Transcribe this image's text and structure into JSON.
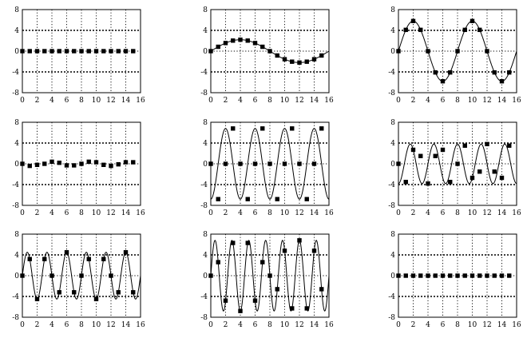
{
  "chart_data": [
    {
      "type": "line",
      "panel": 1,
      "xlim": [
        0,
        16
      ],
      "ylim": [
        -8,
        8
      ],
      "xticks": [
        "0",
        "2",
        "4",
        "6",
        "8",
        "10",
        "12",
        "14",
        "16"
      ],
      "yticks": [
        "8",
        "4",
        "0",
        "-4",
        "-8"
      ],
      "grid": true,
      "curve": {
        "amplitude": 0,
        "frequency_k": 0,
        "phase": 0
      },
      "x": [
        0,
        1,
        2,
        3,
        4,
        5,
        6,
        7,
        8,
        9,
        10,
        11,
        12,
        13,
        14,
        15
      ],
      "y": [
        0,
        0,
        0,
        0,
        0,
        0,
        0,
        0,
        0,
        0,
        0,
        0,
        0,
        0,
        0,
        0
      ]
    },
    {
      "type": "line",
      "panel": 2,
      "xlim": [
        0,
        16
      ],
      "ylim": [
        -8,
        8
      ],
      "xticks": [
        "0",
        "2",
        "4",
        "6",
        "8",
        "10",
        "12",
        "14",
        "16"
      ],
      "yticks": [
        "8",
        "4",
        "0",
        "-4",
        "-8"
      ],
      "grid": true,
      "curve": {
        "amplitude": 2.2,
        "frequency_k": 1,
        "phase": 0
      },
      "x": [
        0,
        1,
        2,
        3,
        4,
        5,
        6,
        7,
        8,
        9,
        10,
        11,
        12,
        13,
        14,
        15
      ],
      "y": [
        0,
        0.84,
        1.56,
        2.03,
        2.2,
        2.03,
        1.56,
        0.84,
        0,
        -0.84,
        -1.56,
        -2.03,
        -2.2,
        -2.03,
        -1.56,
        -0.84
      ]
    },
    {
      "type": "line",
      "panel": 3,
      "xlim": [
        0,
        16
      ],
      "ylim": [
        -8,
        8
      ],
      "xticks": [
        "0",
        "2",
        "4",
        "6",
        "8",
        "10",
        "12",
        "14",
        "16"
      ],
      "yticks": [
        "8",
        "4",
        "0",
        "-4",
        "-8"
      ],
      "grid": true,
      "curve": {
        "amplitude": 5.8,
        "frequency_k": 2,
        "phase": 0
      },
      "x": [
        0,
        1,
        2,
        3,
        4,
        5,
        6,
        7,
        8,
        9,
        10,
        11,
        12,
        13,
        14,
        15
      ],
      "y": [
        0,
        4.1,
        5.8,
        4.1,
        0,
        -4.1,
        -5.8,
        -4.1,
        0,
        4.1,
        5.8,
        4.1,
        0,
        -4.1,
        -5.8,
        -4.1
      ]
    },
    {
      "type": "line",
      "panel": 4,
      "xlim": [
        0,
        16
      ],
      "ylim": [
        -8,
        8
      ],
      "xticks": [
        "0",
        "2",
        "4",
        "6",
        "8",
        "10",
        "12",
        "14",
        "16"
      ],
      "yticks": [
        "8",
        "4",
        "0",
        "-4",
        "-8"
      ],
      "grid": true,
      "curve": null,
      "x": [
        0,
        1,
        2,
        3,
        4,
        5,
        6,
        7,
        8,
        9,
        10,
        11,
        12,
        13,
        14,
        15
      ],
      "y": [
        0,
        -0.4,
        -0.2,
        0,
        0.4,
        0.2,
        -0.3,
        -0.3,
        0,
        0.4,
        0.3,
        -0.2,
        -0.4,
        -0.1,
        0.3,
        0.3
      ]
    },
    {
      "type": "line",
      "panel": 5,
      "xlim": [
        0,
        16
      ],
      "ylim": [
        -8,
        8
      ],
      "xticks": [
        "0",
        "2",
        "4",
        "6",
        "8",
        "10",
        "12",
        "14",
        "16"
      ],
      "yticks": [
        "8",
        "4",
        "0",
        "-4",
        "-8"
      ],
      "grid": true,
      "curve": {
        "amplitude": 6.8,
        "frequency_k": 4,
        "phase": 4.712
      },
      "x": [
        0,
        1,
        2,
        3,
        4,
        5,
        6,
        7,
        8,
        9,
        10,
        11,
        12,
        13,
        14,
        15
      ],
      "y": [
        0,
        -6.8,
        0,
        6.8,
        0,
        -6.8,
        0,
        6.8,
        0,
        -6.8,
        0,
        6.8,
        0,
        -6.8,
        0,
        6.8
      ]
    },
    {
      "type": "line",
      "panel": 6,
      "xlim": [
        0,
        16
      ],
      "ylim": [
        -8,
        8
      ],
      "xticks": [
        "0",
        "2",
        "4",
        "6",
        "8",
        "10",
        "12",
        "14",
        "16"
      ],
      "yticks": [
        "8",
        "4",
        "0",
        "-4",
        "-8"
      ],
      "grid": true,
      "curve": {
        "amplitude": 3.8,
        "frequency_k": 5,
        "phase": 4.712
      },
      "x": [
        0,
        1,
        2,
        3,
        4,
        5,
        6,
        7,
        8,
        9,
        10,
        11,
        12,
        13,
        14,
        15
      ],
      "y": [
        0,
        -3.5,
        2.7,
        1.5,
        -3.8,
        1.5,
        2.7,
        -3.5,
        0,
        3.5,
        -2.7,
        -1.5,
        3.8,
        -1.5,
        -2.7,
        3.5
      ]
    },
    {
      "type": "line",
      "panel": 7,
      "xlim": [
        0,
        16
      ],
      "ylim": [
        -8,
        8
      ],
      "xticks": [
        "0",
        "2",
        "4",
        "6",
        "8",
        "10",
        "12",
        "14",
        "16"
      ],
      "yticks": [
        "8",
        "4",
        "0",
        "-4",
        "-8"
      ],
      "grid": true,
      "curve": {
        "amplitude": 4.5,
        "frequency_k": 6,
        "phase": 0
      },
      "x": [
        0,
        1,
        2,
        3,
        4,
        5,
        6,
        7,
        8,
        9,
        10,
        11,
        12,
        13,
        14,
        15
      ],
      "y": [
        0,
        3.2,
        -4.5,
        3.2,
        0,
        -3.2,
        4.5,
        -3.2,
        0,
        3.2,
        -4.5,
        3.2,
        0,
        -3.2,
        4.5,
        -3.2
      ]
    },
    {
      "type": "line",
      "panel": 8,
      "xlim": [
        0,
        16
      ],
      "ylim": [
        -8,
        8
      ],
      "xticks": [
        "0",
        "2",
        "4",
        "6",
        "8",
        "10",
        "12",
        "14",
        "16"
      ],
      "yticks": [
        "8",
        "4",
        "0",
        "-4",
        "-8"
      ],
      "grid": true,
      "curve": {
        "amplitude": 6.8,
        "frequency_k": 7,
        "phase": 0
      },
      "x": [
        0,
        1,
        2,
        3,
        4,
        5,
        6,
        7,
        8,
        9,
        10,
        11,
        12,
        13,
        14,
        15
      ],
      "y": [
        0,
        2.6,
        -4.8,
        6.3,
        -6.8,
        6.3,
        -4.8,
        2.6,
        0,
        -2.6,
        4.8,
        -6.3,
        6.8,
        -6.3,
        4.8,
        -2.6
      ]
    },
    {
      "type": "line",
      "panel": 9,
      "xlim": [
        0,
        16
      ],
      "ylim": [
        -8,
        8
      ],
      "xticks": [
        "0",
        "2",
        "4",
        "6",
        "8",
        "10",
        "12",
        "14",
        "16"
      ],
      "yticks": [
        "8",
        "4",
        "0",
        "-4",
        "-8"
      ],
      "grid": true,
      "curve": {
        "amplitude": 0,
        "frequency_k": 0,
        "phase": 0
      },
      "x": [
        0,
        1,
        2,
        3,
        4,
        5,
        6,
        7,
        8,
        9,
        10,
        11,
        12,
        13,
        14,
        15
      ],
      "y": [
        0,
        0,
        0,
        0,
        0,
        0,
        0,
        0,
        0,
        0,
        0,
        0,
        0,
        0,
        0,
        0
      ]
    }
  ]
}
